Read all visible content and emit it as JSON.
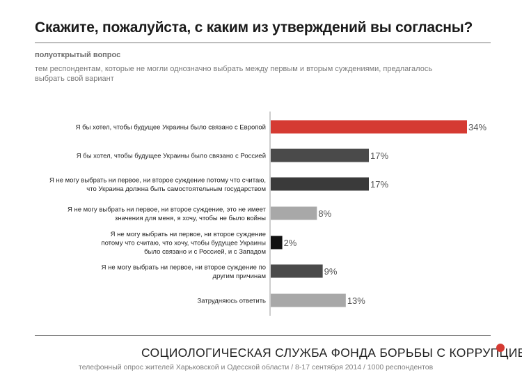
{
  "header": {
    "title": "Скажите, пожалуйста, с каким из утверждений вы согласны?",
    "subtitle": "полуоткрытый вопрос",
    "note": "тем респондентам, которые не могли однозначно выбрать между первым и вторым суждениями, предлагалось выбрать свой вариант"
  },
  "footer": {
    "brand": "СОЦИОЛОГИЧЕСКАЯ СЛУЖБА ФОНДА БОРЬБЫ С КОРРУПЦИЕЙ",
    "source": "телефонный опрос жителей Харьковской и Одесской области / 8-17 сентября 2014 / 1000 респондентов"
  },
  "colors": {
    "red": "#d53a32",
    "dark": "#4a4a4a",
    "darker": "#3a3a3a",
    "light": "#a8a8a8",
    "black": "#111111"
  },
  "chart_data": {
    "type": "bar",
    "orientation": "horizontal",
    "title": "Скажите, пожалуйста, с каким из утверждений вы согласны?",
    "xlabel": "",
    "ylabel": "",
    "xlim": [
      0,
      34
    ],
    "unit": "%",
    "categories": [
      [
        "Я бы хотел, чтобы будущее Украины было связано с Европой"
      ],
      [
        "Я бы хотел, чтобы будущее Украины было связано с Россией"
      ],
      [
        "Я не могу выбрать ни первое, ни второе суждение потому что считаю,",
        "что Украина должна быть самостоятельным государством"
      ],
      [
        "Я не могу выбрать ни первое, ни второе суждение, это не имеет",
        "значения для меня, я хочу, чтобы не было войны"
      ],
      [
        "Я не могу выбрать ни первое, ни второе суждение",
        "потому что считаю, что хочу, чтобы будущее Украины",
        "было связано и с Россией, и с Западом"
      ],
      [
        "Я не могу выбрать ни первое, ни второе суждение по",
        "другим причинам"
      ],
      [
        "Затрудняюсь ответить"
      ]
    ],
    "values": [
      34,
      17,
      17,
      8,
      2,
      9,
      13
    ],
    "value_labels": [
      "34%",
      "17%",
      "17%",
      "8%",
      "2%",
      "9%",
      "13%"
    ],
    "bar_colors": [
      "red",
      "dark",
      "darker",
      "light",
      "black",
      "dark",
      "light"
    ]
  }
}
